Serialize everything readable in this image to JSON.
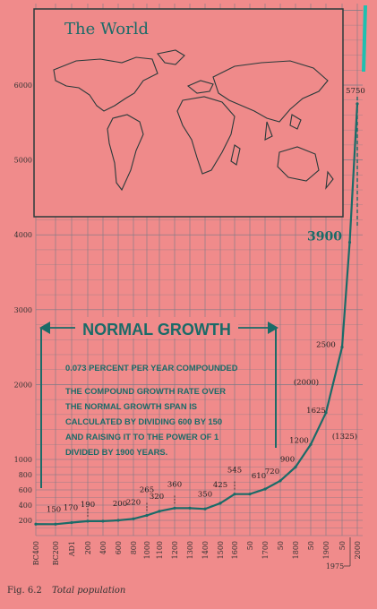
{
  "chart_data": {
    "type": "line",
    "inset_title": "The World",
    "banner": "NORMAL GROWTH",
    "note_rate": "0.073 PERCENT PER YEAR COMPOUNDED",
    "note_lines": [
      "THE COMPOUND GROWTH RATE OVER",
      "THE NORMAL GROWTH SPAN IS",
      "CALCULATED BY DIVIDING 600 BY 150",
      "AND RAISING IT TO THE POWER OF 1",
      "DIVIDED BY 1900 YEARS."
    ],
    "caption_label": "Fig. 6.2",
    "caption_text": "Total population",
    "x_ticks": [
      "BC400",
      "BC200",
      "AD1",
      "200",
      "400",
      "600",
      "800",
      "1000",
      "1100",
      "1200",
      "1300",
      "1400",
      "1500",
      "1600",
      "50",
      "1700",
      "50",
      "1800",
      "50",
      "1900",
      "50",
      "2000"
    ],
    "x_extra_label": "1975",
    "y_ticks": [
      "200",
      "400",
      "600",
      "800",
      "1000",
      "2000",
      "3000",
      "4000",
      "5000",
      "6000"
    ],
    "ylim": [
      0,
      7000
    ],
    "series": [
      {
        "values": [
          {
            "x": -400,
            "y": 150
          },
          {
            "x": -200,
            "y": 150
          },
          {
            "x": 1,
            "y": 170
          },
          {
            "x": 200,
            "y": 190
          },
          {
            "x": 400,
            "y": 190
          },
          {
            "x": 600,
            "y": 200
          },
          {
            "x": 800,
            "y": 220
          },
          {
            "x": 1000,
            "y": 265
          },
          {
            "x": 1100,
            "y": 320
          },
          {
            "x": 1200,
            "y": 360
          },
          {
            "x": 1300,
            "y": 360
          },
          {
            "x": 1400,
            "y": 350
          },
          {
            "x": 1500,
            "y": 425
          },
          {
            "x": 1600,
            "y": 545
          },
          {
            "x": 1650,
            "y": 545
          },
          {
            "x": 1700,
            "y": 610
          },
          {
            "x": 1750,
            "y": 720
          },
          {
            "x": 1800,
            "y": 900
          },
          {
            "x": 1850,
            "y": 1200
          },
          {
            "x": 1900,
            "y": 1625
          },
          {
            "x": 1950,
            "y": 2500
          },
          {
            "x": 1975,
            "y": 3900
          },
          {
            "x": 2000,
            "y": 5750
          }
        ]
      }
    ],
    "data_labels": [
      {
        "text": "150",
        "x": -200,
        "y": 150
      },
      {
        "text": "170",
        "x": 1,
        "y": 170
      },
      {
        "text": "190",
        "x": 200,
        "y": 190
      },
      {
        "text": "200",
        "x": 600,
        "y": 200
      },
      {
        "text": "220",
        "x": 800,
        "y": 220
      },
      {
        "text": "265",
        "x": 1000,
        "y": 265
      },
      {
        "text": "320",
        "x": 1100,
        "y": 320
      },
      {
        "text": "360",
        "x": 1200,
        "y": 360
      },
      {
        "text": "350",
        "x": 1400,
        "y": 350
      },
      {
        "text": "425",
        "x": 1500,
        "y": 425
      },
      {
        "text": "545",
        "x": 1600,
        "y": 545
      },
      {
        "text": "610",
        "x": 1700,
        "y": 610
      },
      {
        "text": "720",
        "x": 1750,
        "y": 720
      },
      {
        "text": "900",
        "x": 1800,
        "y": 900
      },
      {
        "text": "1200",
        "x": 1850,
        "y": 1200
      },
      {
        "text": "(1325)",
        "x": 1900,
        "y": 1325
      },
      {
        "text": "1625",
        "x": 1900,
        "y": 1625
      },
      {
        "text": "(2000)",
        "x": 1900,
        "y": 2000
      },
      {
        "text": "2500",
        "x": 1950,
        "y": 2500
      },
      {
        "text": "3900",
        "x": 1975,
        "y": 3900
      },
      {
        "text": "5750",
        "x": 2000,
        "y": 5750
      }
    ],
    "colors": {
      "background": "#f08b8b",
      "ink": "#1a6b68",
      "grid": "#7a7a86",
      "accent": "#1ec0b0"
    },
    "grid": true
  }
}
